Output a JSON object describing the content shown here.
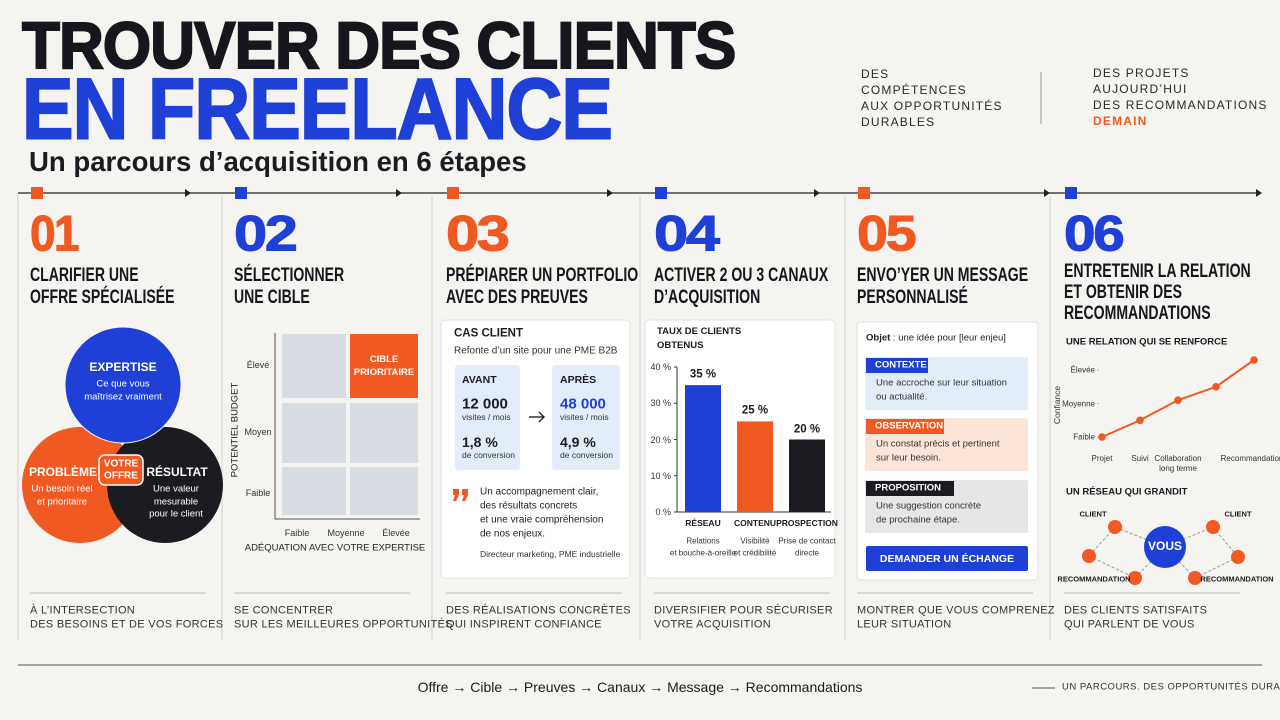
{
  "header": {
    "title_line1": "TROUVER DES CLIENTS",
    "title_line2": "EN FREELANCE",
    "subtitle": "Un parcours d’acquisition en 6 étapes",
    "tagline_left": [
      "DES",
      "COMPÉTENCES",
      "AUX OPPORTUNITÉS",
      "DURABLES"
    ],
    "tagline_right": [
      "DES PROJETS",
      "AUJOURD’HUI",
      "DES RECOMMANDATIONS",
      "DEMAIN"
    ]
  },
  "steps": [
    {
      "number": "01",
      "title": [
        "CLARIFIER UNE",
        "OFFRE SPÉCIALISÉE"
      ],
      "caption": [
        "À L’INTERSECTION",
        "DES BESOINS ET DE VOS FORCES"
      ]
    },
    {
      "number": "02",
      "title": [
        "SÉLECTIONNER",
        "UNE CIBLE"
      ],
      "caption": [
        "SE CONCENTRER",
        "SUR LES MEILLEURES OPPORTUNITÉS"
      ]
    },
    {
      "number": "03",
      "title": [
        "PRÉPIARER UN PORTFOLIO",
        "AVEC DES PREUVES"
      ],
      "caption": [
        "DES RÉALISATIONS CONCRÈTES",
        "QUI INSPIRENT CONFIANCE"
      ]
    },
    {
      "number": "04",
      "title": [
        "ACTIVER 2 OU 3 CANAUX",
        "D’ACQUISITION"
      ],
      "caption": [
        "DIVERSIFIER POUR SÉCURISER",
        "VOTRE ACQUISITION"
      ]
    },
    {
      "number": "05",
      "title": [
        "ENVO’YER UN MESSAGE",
        "PERSONNALISÉ"
      ],
      "caption": [
        "MONTRER QUE VOUS COMPRENEZ",
        "LEUR SITUATION"
      ]
    },
    {
      "number": "06",
      "title": [
        "ENTRETENIR LA RELATION",
        "ET OBTENIR DES",
        "RECOMMANDATIONS"
      ],
      "caption": [
        "DES CLIENTS SATISFAITS",
        "QUI PARLENT DE VOUS"
      ]
    }
  ],
  "venn": {
    "top": {
      "title": "EXPERTISE",
      "text": [
        "Ce que vous",
        "maîtrisez vraiment"
      ]
    },
    "left": {
      "title": "PROBLÈME",
      "text": [
        "Un besoin réel",
        "et prioritaire"
      ]
    },
    "right": {
      "title": "RÉSULTAT",
      "text": [
        "Une valeur",
        "mesurable",
        "pour le client"
      ]
    },
    "center": [
      "VOTRE",
      "OFFRE"
    ]
  },
  "matrix": {
    "y_title": "POTENTIEL BUDGET",
    "y_labels": [
      "Élevé",
      "Moyen",
      "Faible"
    ],
    "x_labels": [
      "Faible",
      "Moyenne",
      "Élevée"
    ],
    "x_title": "ADÉQUATION AVEC VOTRE EXPERTISE",
    "target": "CIBLE PRIORITAIRE"
  },
  "case": {
    "title": "CAS CLIENT",
    "subtitle": "Refonte d’un site pour une PME B2B",
    "before": {
      "label": "AVANT",
      "visits": "12 000",
      "visits_unit": "visites / mois",
      "conversion": "1,8 %",
      "conversion_unit": "de conversion"
    },
    "after": {
      "label": "APRÈS",
      "visits": "48 000",
      "visits_unit": "visites / mois",
      "conversion": "4,9 %",
      "conversion_unit": "de conversion"
    },
    "quote": [
      "Un accompagnement clair,",
      "des résultats concrets",
      "et une vraie compréhension",
      "de nos enjeux."
    ],
    "author": "Directeur marketing, PME industrielle"
  },
  "message": {
    "subject_label": "Objet",
    "subject_text": " : une idée pour [leur enjeu]",
    "blocks": [
      {
        "tag": "CONTEXTE",
        "text": [
          "Une accroche sur leur situation",
          "ou actualité."
        ]
      },
      {
        "tag": "OBSERVATION",
        "text": [
          "Un constat précis et pertinent",
          "sur leur besoin."
        ]
      },
      {
        "tag": "PROPOSITION",
        "text": [
          "Une suggestion concrète",
          "de prochaine étape."
        ]
      }
    ],
    "button": "DEMANDER UN ÉCHANGE"
  },
  "network": {
    "title": "UN RÉSEAU QUI GRANDIT",
    "center": "VOUS",
    "labels": [
      "CLIENT",
      "CLIENT",
      "RECOMMANDATION",
      "RECOMMANDATION"
    ]
  },
  "chart_data": [
    {
      "type": "bar",
      "title": "TAUX DE CLIENTS OBTENUS",
      "categories": [
        "RÉSEAU",
        "CONTENU",
        "PROSPECTION"
      ],
      "subcategories": [
        [
          "Relations",
          "et bouche-à-oreille"
        ],
        [
          "Visibilité",
          "et crédibilité"
        ],
        [
          "Prise de contact",
          "directe"
        ]
      ],
      "values": [
        35,
        25,
        20
      ],
      "value_labels": [
        "35 %",
        "25 %",
        "20 %"
      ],
      "colors": [
        "#1f40d6",
        "#f05a22",
        "#1b1b22"
      ],
      "ylim": [
        0,
        40
      ],
      "yticks": [
        {
          "value": 0,
          "label": "0 %"
        },
        {
          "value": 10,
          "label": "10 %"
        },
        {
          "value": 20,
          "label": "20 %"
        },
        {
          "value": 30,
          "label": "30 %"
        },
        {
          "value": 40,
          "label": "40 %"
        }
      ]
    },
    {
      "type": "line",
      "title": "UNE RELATION QUI SE RENFORCE",
      "y_label": "Confiance",
      "categories": [
        "Projet",
        "Suivi",
        "Collaboration long terme",
        null,
        "Recommandations"
      ],
      "values": [
        0,
        0.5,
        1.1,
        1.5,
        2.3
      ],
      "color": "#f05a22",
      "ylim": [
        0,
        2.3
      ],
      "yticks": [
        {
          "value": 0,
          "label": "Faible"
        },
        {
          "value": 1,
          "label": "Moyenne"
        },
        {
          "value": 2,
          "label": "Élevée"
        }
      ]
    }
  ],
  "footer": {
    "path": "Offre → Cible → Preuves → Canaux → Message → Recommandations",
    "tagline": "UN PARCOURS. DES OPPORTUNITÉS DURABLES."
  }
}
